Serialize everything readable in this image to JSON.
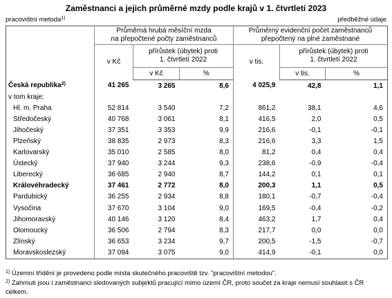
{
  "header": {
    "title": "Zaměstnanci a jejich průměrné mzdy podle krajů v 1. čtvrtletí 2023",
    "method": "pracovištní metoda",
    "method_note": "1)",
    "status": "předběžné údaje"
  },
  "table": {
    "groups": [
      {
        "title_lines": [
          "Průměrná hrubá měsíční mzda",
          "na přepočtené počty zaměstnanců"
        ],
        "unit": "v Kč",
        "change_lines": [
          "přírůstek (úbytek) proti",
          "1. čtvrtletí 2022"
        ],
        "change_units": [
          "v Kč",
          "%"
        ]
      },
      {
        "title_lines": [
          "Průměrný evidenční počet zaměstnanců",
          "přepočtený na plné zaměstnané"
        ],
        "unit": "v tis.",
        "change_lines": [
          "přírůstek (úbytek) proti",
          "1. čtvrtletí 2022"
        ],
        "change_units": [
          "v tis.",
          "%"
        ]
      }
    ],
    "rows": [
      {
        "label": "Česká republika",
        "note": "2)",
        "bold": true,
        "cells": [
          "41 265",
          "3 265",
          "8,6",
          "4 025,9",
          "42,8",
          "1,1"
        ]
      },
      {
        "label": "v tom kraje:"
      },
      {
        "label": "Hl. m. Praha",
        "cells": [
          "52 814",
          "3 540",
          "7,2",
          "861,2",
          "38,1",
          "4,6"
        ]
      },
      {
        "label": "Středočeský",
        "cells": [
          "40 768",
          "3 061",
          "8,1",
          "416,5",
          "2,0",
          "0,5"
        ]
      },
      {
        "label": "Jihočeský",
        "cells": [
          "37 351",
          "3 353",
          "9,9",
          "216,6",
          "-0,1",
          "-0,1"
        ]
      },
      {
        "label": "Plzeňský",
        "cells": [
          "38 835",
          "2 973",
          "8,3",
          "216,6",
          "3,3",
          "1,5"
        ]
      },
      {
        "label": "Karlovarský",
        "cells": [
          "35 010",
          "2 585",
          "8,0",
          "81,2",
          "0,4",
          "0,4"
        ]
      },
      {
        "label": "Ústecký",
        "cells": [
          "37 940",
          "3 244",
          "9,3",
          "238,6",
          "-0,9",
          "-0,4"
        ]
      },
      {
        "label": "Liberecký",
        "cells": [
          "36 685",
          "2 940",
          "8,7",
          "144,2",
          "0,1",
          "0,1"
        ]
      },
      {
        "label": "Královéhradecký",
        "bold": true,
        "cells": [
          "37 461",
          "2 772",
          "8,0",
          "200,3",
          "1,1",
          "0,5"
        ]
      },
      {
        "label": "Pardubický",
        "cells": [
          "36 255",
          "2 934",
          "8,8",
          "180,1",
          "-0,7",
          "-0,4"
        ]
      },
      {
        "label": "Vysočina",
        "cells": [
          "37 670",
          "3 104",
          "9,0",
          "169,5",
          "-0,4",
          "-0,2"
        ]
      },
      {
        "label": "Jihomoravský",
        "cells": [
          "40 146",
          "3 120",
          "8,4",
          "463,2",
          "1,7",
          "0,4"
        ]
      },
      {
        "label": "Olomoucký",
        "cells": [
          "36 506",
          "2 794",
          "8,3",
          "217,7",
          "0,0",
          "0,0"
        ]
      },
      {
        "label": "Zlínský",
        "cells": [
          "36 653",
          "3 234",
          "9,7",
          "200,5",
          "-1,5",
          "-0,7"
        ]
      },
      {
        "label": "Moravskoslezský",
        "cells": [
          "37 094",
          "3 075",
          "9,0",
          "414,9",
          "-0,1",
          "0,0"
        ]
      }
    ]
  },
  "footnotes": [
    {
      "mark": "1)",
      "text": "Územní třídění je provedeno podle místa skutečného pracoviště tzv. \"pracovištní metodou\"."
    },
    {
      "mark": "2)",
      "text": "Zahrnuti jsou i zaměstnanci sledovaných subjektů pracující mimo území ČR, proto součet za kraje nemusí souhlasit s ČR celkem."
    }
  ]
}
